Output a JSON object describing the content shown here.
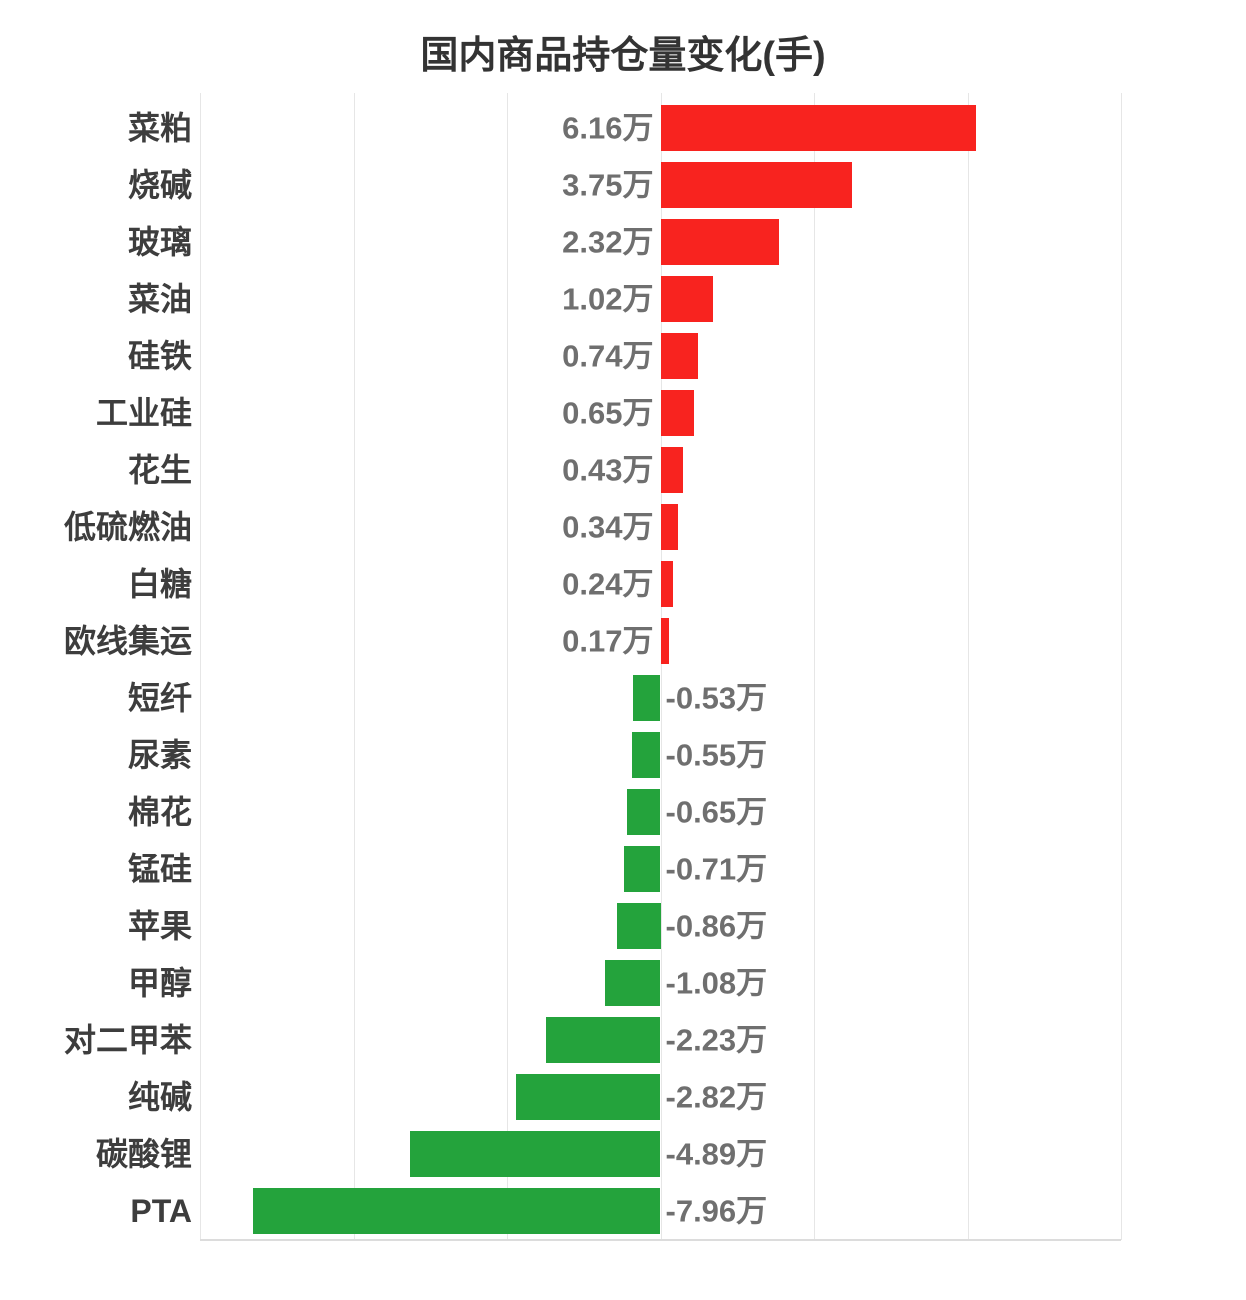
{
  "title": "国内商品持仓量变化(手)",
  "chart_data": {
    "type": "bar",
    "orientation": "horizontal",
    "title": "国内商品持仓量变化(手)",
    "unit": "万手",
    "categories": [
      "菜粕",
      "烧碱",
      "玻璃",
      "菜油",
      "硅铁",
      "工业硅",
      "花生",
      "低硫燃油",
      "白糖",
      "欧线集运",
      "短纤",
      "尿素",
      "棉花",
      "锰硅",
      "苹果",
      "甲醇",
      "对二甲苯",
      "纯碱",
      "碳酸锂",
      "PTA"
    ],
    "values": [
      6.16,
      3.75,
      2.32,
      1.02,
      0.74,
      0.65,
      0.43,
      0.34,
      0.24,
      0.17,
      -0.53,
      -0.55,
      -0.65,
      -0.71,
      -0.86,
      -1.08,
      -2.23,
      -2.82,
      -4.89,
      -7.96
    ],
    "value_labels": [
      "6.16万",
      "3.75万",
      "2.32万",
      "1.02万",
      "0.74万",
      "0.65万",
      "0.43万",
      "0.34万",
      "0.24万",
      "0.17万",
      "-0.53万",
      "-0.55万",
      "-0.65万",
      "-0.71万",
      "-0.86万",
      "-1.08万",
      "-2.23万",
      "-2.82万",
      "-4.89万",
      "-7.96万"
    ],
    "xlim": [
      -9,
      9
    ],
    "grid_interval": 3,
    "grid": true,
    "legend": "none",
    "xlabel": "",
    "ylabel": "",
    "colors": {
      "positive": "#f8231f",
      "negative": "#24a33c",
      "gridline": "#e6e6e6",
      "axis_line": "#dcdcdc",
      "title_text": "#333333",
      "category_text": "#3d3d3d",
      "value_text": "#6f6f6f",
      "background": "#ffffff"
    }
  }
}
